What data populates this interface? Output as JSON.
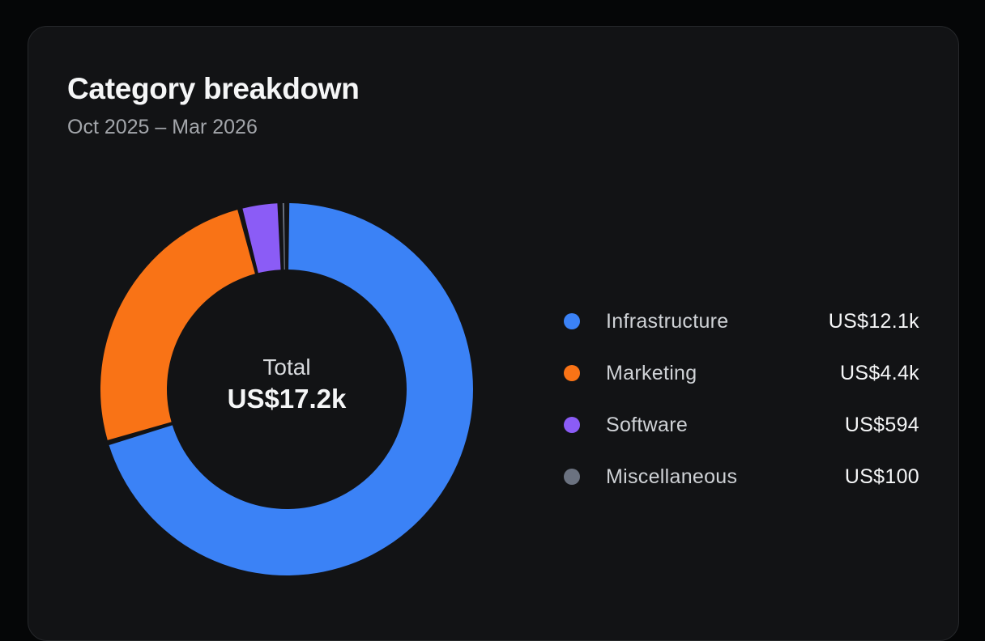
{
  "card": {
    "title": "Category breakdown",
    "subtitle": "Oct 2025 – Mar 2026"
  },
  "chart_data": {
    "type": "pie",
    "variant": "donut",
    "title": "Category breakdown",
    "subtitle": "Oct 2025 – Mar 2026",
    "center_label": "Total",
    "center_value": "US$17.2k",
    "legend_position": "right",
    "categories": [
      "Infrastructure",
      "Marketing",
      "Software",
      "Miscellaneous"
    ],
    "values": [
      12100,
      4400,
      594,
      100
    ],
    "value_labels": [
      "US$12.1k",
      "US$4.4k",
      "US$594",
      "US$100"
    ],
    "colors": [
      "#3b82f6",
      "#f97316",
      "#8b5cf6",
      "#6b7280"
    ]
  }
}
